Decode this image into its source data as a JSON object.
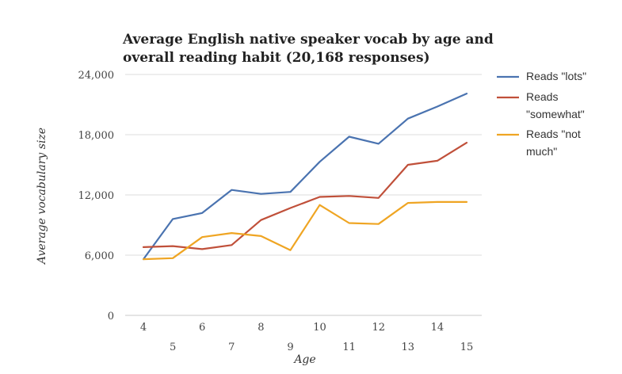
{
  "chart_data": {
    "type": "line",
    "title": [
      "Average English native speaker vocab by age and",
      "overall reading habit (20,168 responses)"
    ],
    "xlabel": "Age",
    "ylabel": "Average vocabulary size",
    "x": [
      4,
      5,
      6,
      7,
      8,
      9,
      10,
      11,
      12,
      13,
      14,
      15
    ],
    "ylim": [
      0,
      24000
    ],
    "y_ticks": [
      0,
      6000,
      12000,
      18000,
      24000
    ],
    "y_tick_labels": [
      "0",
      "6,000",
      "12,000",
      "18,000",
      "24,000"
    ],
    "x_tick_labels": [
      "4",
      "5",
      "6",
      "7",
      "8",
      "9",
      "10",
      "11",
      "12",
      "13",
      "14",
      "15"
    ],
    "grid": true,
    "legend_position": "right",
    "series": [
      {
        "name": "Reads \"lots\"",
        "legend_lines": [
          "Reads \"lots\""
        ],
        "color": "#4a73b0",
        "values": [
          5600,
          9600,
          10200,
          12500,
          12100,
          12300,
          15300,
          17800,
          17100,
          19600,
          20800,
          22100
        ]
      },
      {
        "name": "Reads \"somewhat\"",
        "legend_lines": [
          "Reads",
          "\"somewhat\""
        ],
        "color": "#c0503a",
        "values": [
          6800,
          6900,
          6600,
          7000,
          9500,
          10700,
          11800,
          11900,
          11700,
          15000,
          15400,
          17200
        ]
      },
      {
        "name": "Reads \"not much\"",
        "legend_lines": [
          "Reads \"not",
          "much\""
        ],
        "color": "#efa523",
        "values": [
          5600,
          5700,
          7800,
          8200,
          7900,
          6500,
          11000,
          9200,
          9100,
          11200,
          11300,
          11300
        ]
      }
    ]
  }
}
